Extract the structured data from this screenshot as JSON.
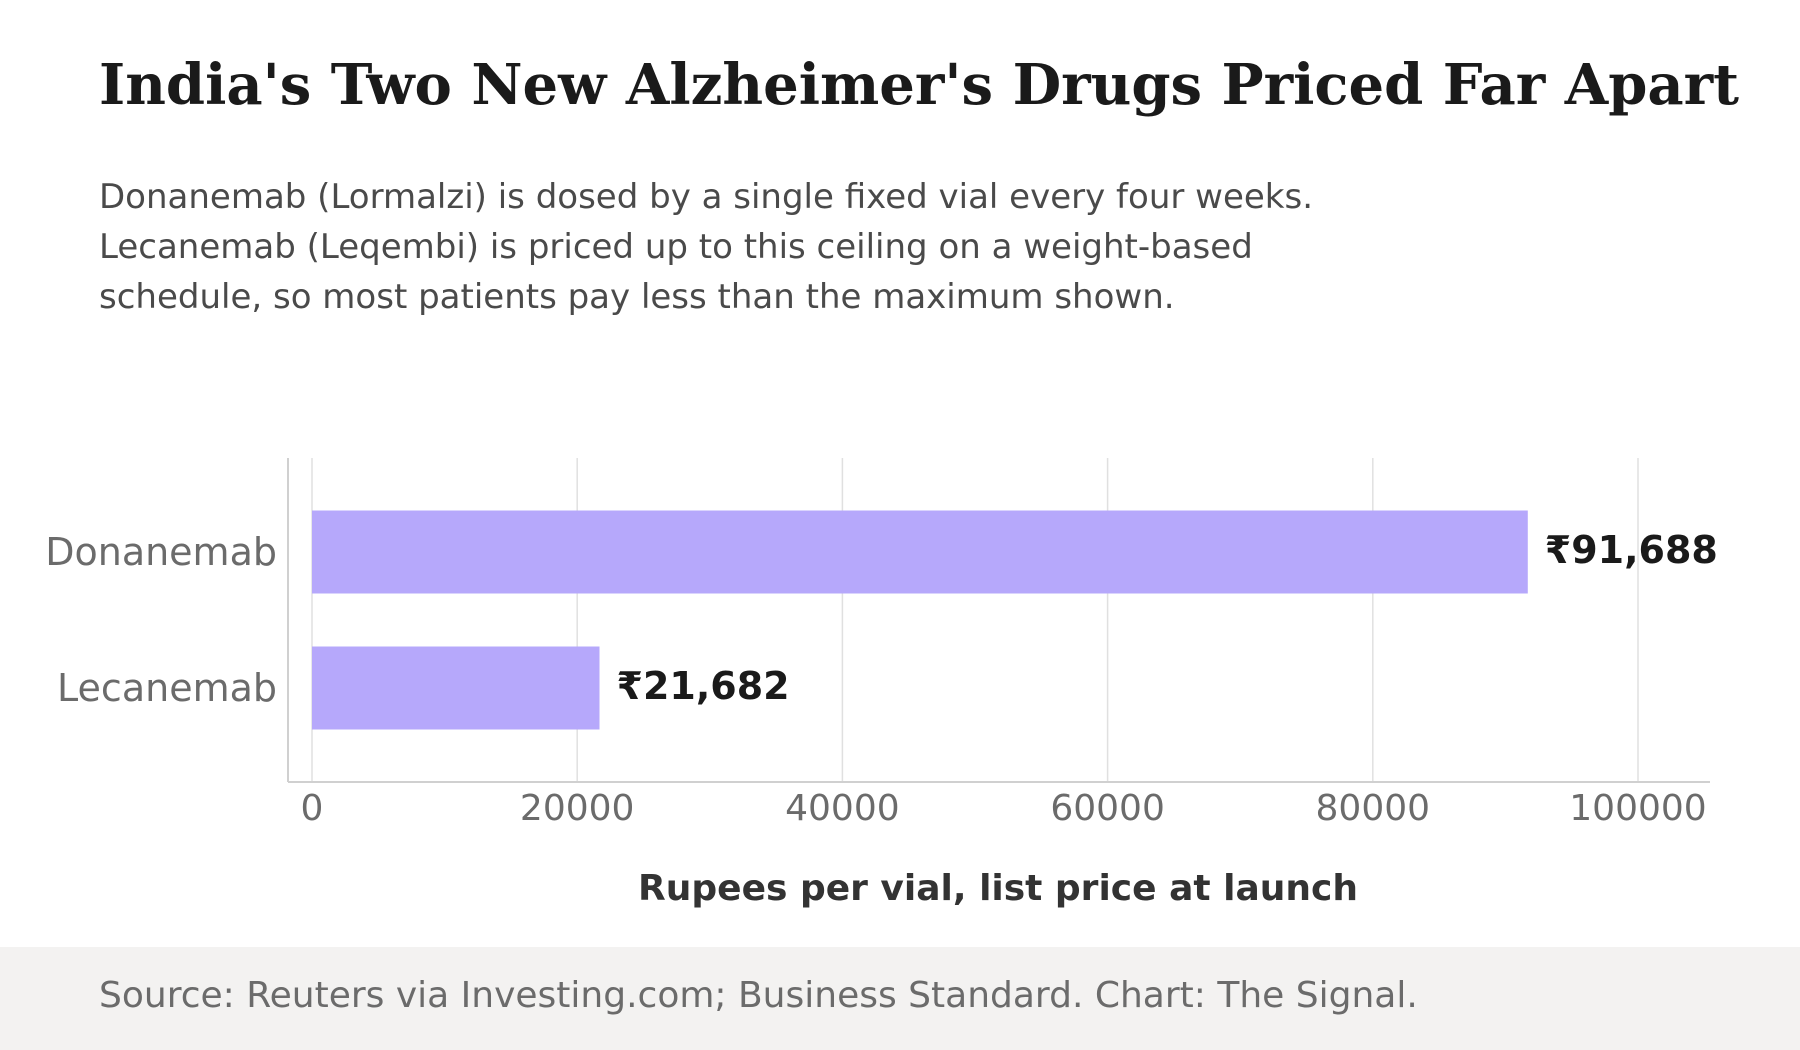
{
  "header": {
    "title": "India's Two New Alzheimer's Drugs Priced Far Apart",
    "subtitle_lines": [
      "Donanemab (Lormalzi) is dosed by a single fixed vial every four weeks.",
      "Lecanemab (Leqembi) is priced up to this ceiling on a weight-based",
      "schedule, so most patients pay less than the maximum shown."
    ]
  },
  "chart_data": {
    "type": "bar",
    "orientation": "horizontal",
    "categories": [
      "Donanemab",
      "Lecanemab"
    ],
    "values": [
      91688,
      21682
    ],
    "value_labels": [
      "₹91,688",
      "₹21,682"
    ],
    "xlabel": "Rupees per vial, list price at launch",
    "ylabel": "",
    "xlim": [
      0,
      100000
    ],
    "x_ticks": [
      0,
      20000,
      40000,
      60000,
      80000,
      100000
    ],
    "x_tick_labels": [
      "0",
      "20000",
      "40000",
      "60000",
      "80000",
      "100000"
    ],
    "grid": "vertical",
    "bar_color": "#b6a8fb",
    "grid_color": "#e0e0e0",
    "axis_color": "#d0d0d0"
  },
  "footer": {
    "source": "Source: Reuters via Investing.com; Business Standard. Chart: The Signal."
  }
}
